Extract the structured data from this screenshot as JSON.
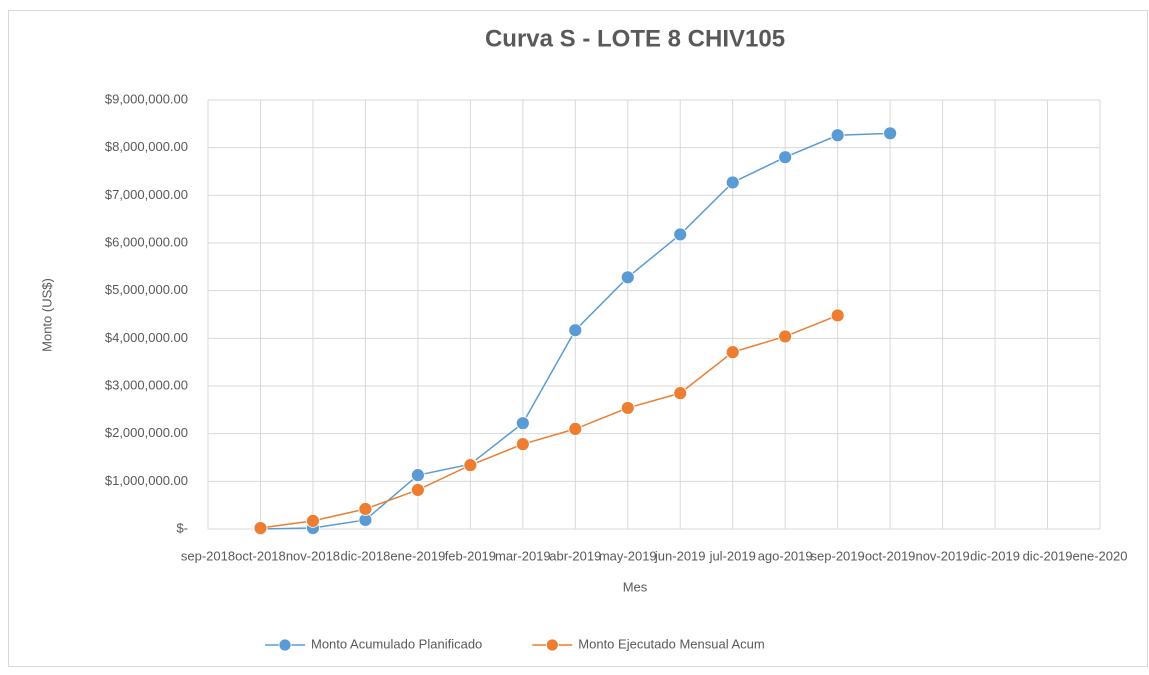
{
  "chart_data": {
    "type": "line",
    "title": "Curva S - LOTE 8 CHIV105",
    "x_label": "Mes",
    "y_label": "Monto (US$)",
    "categories": [
      "sep-2018",
      "oct-2018",
      "nov-2018",
      "dic-2018",
      "ene-2019",
      "feb-2019",
      "mar-2019",
      "abr-2019",
      "may-2019",
      "jun-2019",
      "jul-2019",
      "ago-2019",
      "sep-2019",
      "oct-2019",
      "nov-2019",
      "dic-2019",
      "dic-2019",
      "ene-2020"
    ],
    "series": [
      {
        "name": "Monto Acumulado Planificado",
        "color": "#5b9bd5",
        "values": [
          null,
          0,
          20000,
          190000,
          1130000,
          1360000,
          2220000,
          4170000,
          5280000,
          6180000,
          7270000,
          7800000,
          8260000,
          8300000,
          null,
          null,
          null,
          null
        ]
      },
      {
        "name": "Monto Ejecutado Mensual Acum",
        "color": "#ed7d31",
        "values": [
          null,
          20000,
          170000,
          420000,
          820000,
          1340000,
          1780000,
          2100000,
          2540000,
          2850000,
          3710000,
          4040000,
          4480000,
          null,
          null,
          null,
          null,
          null
        ]
      }
    ],
    "ylim": [
      0,
      9000000
    ],
    "yticks": [
      {
        "value": 0,
        "label": "$-"
      },
      {
        "value": 1000000,
        "label": "$1,000,000.00"
      },
      {
        "value": 2000000,
        "label": "$2,000,000.00"
      },
      {
        "value": 3000000,
        "label": "$3,000,000.00"
      },
      {
        "value": 4000000,
        "label": "$4,000,000.00"
      },
      {
        "value": 5000000,
        "label": "$5,000,000.00"
      },
      {
        "value": 6000000,
        "label": "$6,000,000.00"
      },
      {
        "value": 7000000,
        "label": "$7,000,000.00"
      },
      {
        "value": 8000000,
        "label": "$8,000,000.00"
      },
      {
        "value": 9000000,
        "label": "$9,000,000.00"
      }
    ],
    "grid": true,
    "legend": "bottom"
  }
}
